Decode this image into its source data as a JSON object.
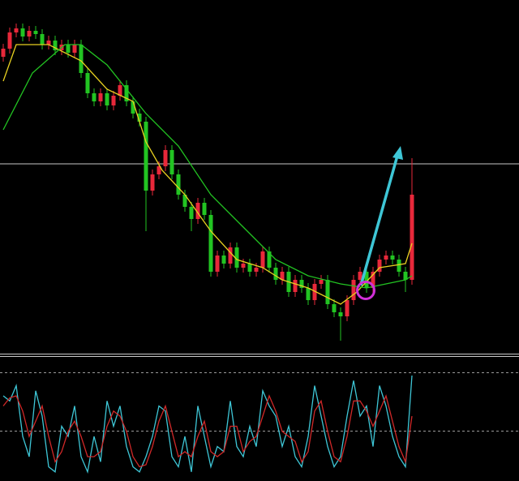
{
  "chart_data": [
    {
      "type": "candlestick",
      "ylim": [
        0,
        435
      ],
      "up_color": "#e8283a",
      "down_color": "#22c422",
      "reference_line": 233,
      "open": [
        365,
        375,
        395,
        400,
        390,
        397,
        393,
        380,
        385,
        373,
        380,
        370,
        380,
        345,
        320,
        310,
        320,
        305,
        317,
        330,
        310,
        295,
        285,
        200,
        220,
        230,
        250,
        220,
        195,
        180,
        165,
        185,
        170,
        100,
        120,
        110,
        130,
        105,
        110,
        100,
        105,
        125,
        105,
        90,
        100,
        75,
        90,
        80,
        65,
        85,
        90,
        60,
        50,
        45,
        65,
        90,
        100,
        80,
        100,
        115,
        120,
        115,
        100,
        90
      ],
      "high": [
        381,
        401,
        406,
        406,
        403,
        403,
        399,
        391,
        391,
        386,
        386,
        386,
        386,
        351,
        326,
        326,
        326,
        323,
        336,
        336,
        316,
        301,
        291,
        226,
        236,
        256,
        256,
        226,
        201,
        186,
        191,
        191,
        176,
        126,
        126,
        136,
        136,
        116,
        116,
        111,
        131,
        131,
        111,
        106,
        106,
        96,
        96,
        86,
        91,
        96,
        96,
        66,
        56,
        71,
        96,
        106,
        106,
        106,
        121,
        126,
        126,
        121,
        106,
        240
      ],
      "low": [
        359,
        369,
        389,
        384,
        384,
        387,
        374,
        374,
        367,
        367,
        364,
        364,
        339,
        314,
        304,
        304,
        299,
        299,
        311,
        304,
        289,
        279,
        150,
        194,
        214,
        224,
        214,
        189,
        174,
        150,
        159,
        164,
        94,
        94,
        104,
        104,
        99,
        99,
        94,
        94,
        99,
        99,
        84,
        84,
        69,
        69,
        74,
        59,
        59,
        79,
        54,
        44,
        15,
        39,
        59,
        84,
        74,
        74,
        94,
        109,
        109,
        94,
        75,
        84
      ],
      "close": [
        375,
        395,
        400,
        390,
        397,
        393,
        380,
        385,
        373,
        380,
        370,
        380,
        345,
        320,
        310,
        320,
        305,
        317,
        330,
        310,
        295,
        285,
        200,
        220,
        230,
        250,
        220,
        195,
        180,
        165,
        185,
        170,
        100,
        120,
        110,
        130,
        105,
        110,
        100,
        105,
        125,
        105,
        90,
        100,
        75,
        90,
        80,
        65,
        85,
        90,
        60,
        50,
        45,
        65,
        90,
        100,
        80,
        100,
        115,
        120,
        115,
        100,
        90,
        195
      ],
      "series": [
        {
          "name": "MA fast",
          "color": "#e8d020",
          "x": [
            0,
            2,
            7,
            12,
            16,
            20,
            22,
            24.5,
            28,
            32,
            36,
            40,
            43,
            47,
            52,
            54.5,
            58,
            62,
            63
          ],
          "values": [
            335,
            380,
            380,
            360,
            325,
            310,
            260,
            225,
            195,
            150,
            115,
            105,
            90,
            80,
            60,
            75,
            105,
            110,
            135
          ]
        },
        {
          "name": "MA slow",
          "color": "#22c422",
          "x": [
            0,
            4.5,
            9.5,
            12,
            16,
            22,
            27,
            32,
            37,
            42,
            47,
            52,
            56,
            62,
            63
          ],
          "values": [
            275,
            345,
            380,
            380,
            355,
            295,
            255,
            195,
            155,
            115,
            95,
            85,
            80,
            90,
            95
          ]
        }
      ]
    },
    {
      "type": "line",
      "ylim": [
        0,
        100
      ],
      "series": [
        {
          "name": "K",
          "color": "#3ec6d6",
          "values": [
            80,
            75,
            90,
            40,
            20,
            85,
            60,
            10,
            5,
            50,
            40,
            70,
            20,
            5,
            40,
            15,
            75,
            50,
            70,
            30,
            10,
            5,
            20,
            40,
            70,
            65,
            20,
            10,
            40,
            5,
            70,
            40,
            10,
            30,
            25,
            75,
            30,
            20,
            50,
            30,
            85,
            70,
            60,
            30,
            50,
            20,
            10,
            40,
            90,
            60,
            30,
            10,
            20,
            60,
            95,
            60,
            70,
            30,
            90,
            70,
            40,
            20,
            10,
            100
          ]
        },
        {
          "name": "D",
          "color": "#d02828",
          "values": [
            70,
            78,
            80,
            65,
            40,
            55,
            70,
            40,
            15,
            25,
            45,
            55,
            40,
            20,
            20,
            25,
            50,
            65,
            60,
            45,
            20,
            10,
            12,
            30,
            55,
            70,
            45,
            20,
            25,
            20,
            40,
            55,
            25,
            20,
            25,
            50,
            50,
            25,
            35,
            40,
            60,
            80,
            65,
            45,
            40,
            35,
            15,
            25,
            65,
            75,
            45,
            20,
            15,
            40,
            75,
            75,
            65,
            50,
            65,
            80,
            55,
            30,
            15,
            60
          ]
        }
      ]
    }
  ]
}
